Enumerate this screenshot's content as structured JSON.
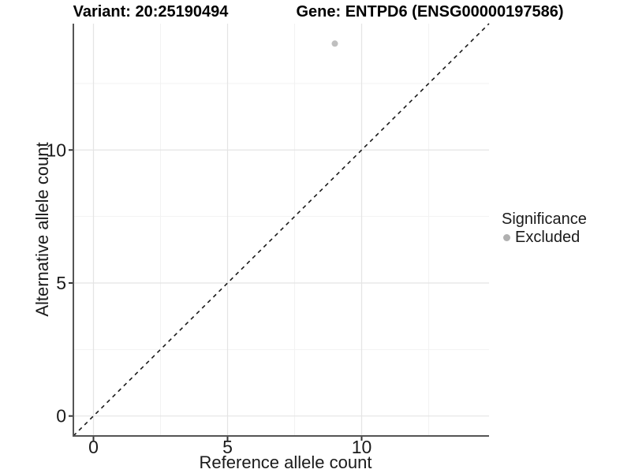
{
  "titles": {
    "left": "Variant: 20:25190494",
    "right": "Gene: ENTPD6 (ENSG00000197586)"
  },
  "chart_data": {
    "type": "scatter",
    "xlabel": "Reference allele count",
    "ylabel": "Alternative allele count",
    "xlim": [
      -0.75,
      14.75
    ],
    "ylim": [
      -0.75,
      14.75
    ],
    "xticks": [
      0,
      5,
      10
    ],
    "yticks": [
      0,
      5,
      10
    ],
    "minor_gridlines": [
      2.5,
      7.5,
      12.5
    ],
    "grid": "major+minor",
    "points": [
      {
        "x": 9,
        "y": 14,
        "significance": "Excluded",
        "color": "#bfbfbf",
        "radius": 4
      }
    ],
    "reference_line": {
      "slope": 1,
      "intercept": 0,
      "style": "dashed",
      "color": "#1a1a1a"
    },
    "legend": {
      "title": "Significance",
      "position": "right",
      "items": [
        {
          "label": "Excluded",
          "color": "#b0b0b0"
        }
      ]
    }
  },
  "colors": {
    "background": "#ffffff",
    "axis_line": "#555555",
    "tick": "#333333",
    "tick_label": "#1a1a1a",
    "grid_major": "#e4e4e4",
    "grid_minor": "#f2f2f2"
  }
}
